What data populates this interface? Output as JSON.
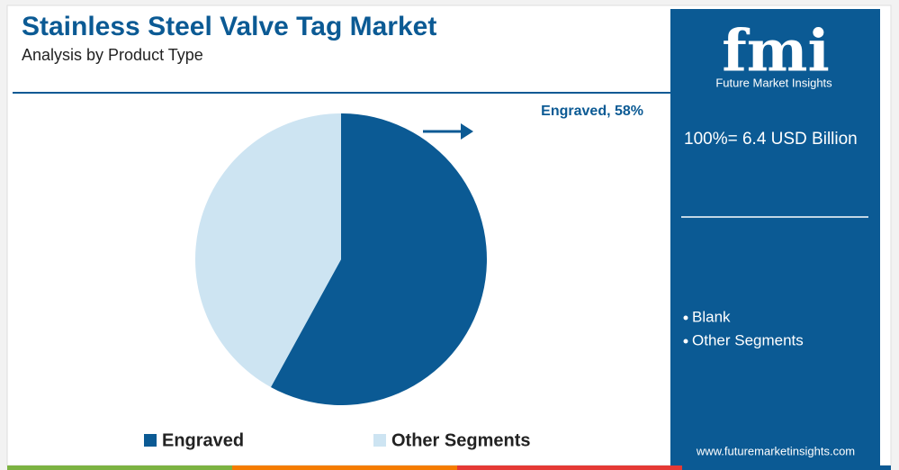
{
  "chart_data": {
    "type": "pie",
    "title": "Stainless Steel Valve Tag Market",
    "subtitle": "Analysis by Product Type",
    "categories": [
      "Engraved",
      "Other Segments"
    ],
    "values": [
      58,
      42
    ],
    "value_labels": [
      "Engraved, 58%",
      null
    ],
    "colors": [
      "#0b5a94",
      "#cde4f2"
    ],
    "legend": "bottom",
    "total_label": "100%= 6.4 USD Billion",
    "side_list": [
      "Blank",
      "Other Segments"
    ],
    "logo_text": "fmi",
    "brand": "Future Market Insights",
    "website": "www.futuremarketinsights.com"
  }
}
